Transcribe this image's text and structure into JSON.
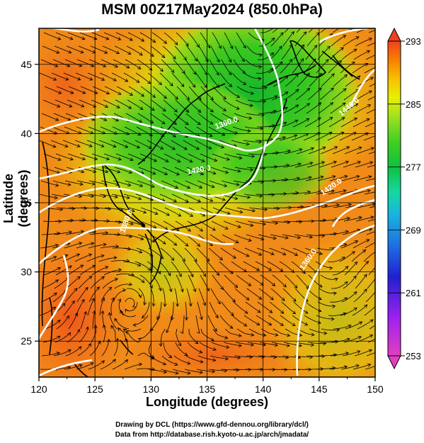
{
  "title": "MSM 00Z17May2024 (850.0hPa)",
  "x_axis": {
    "label": "Longitude (degrees)",
    "ticks": [
      {
        "value": 120,
        "label": "120"
      },
      {
        "value": 125,
        "label": "125"
      },
      {
        "value": 130,
        "label": "130"
      },
      {
        "value": 135,
        "label": "135"
      },
      {
        "value": 140,
        "label": "140"
      },
      {
        "value": 145,
        "label": "145"
      },
      {
        "value": 150,
        "label": "150"
      }
    ],
    "range": [
      120,
      150
    ]
  },
  "y_axis": {
    "label": "Latitude  (degrees)",
    "ticks": [
      {
        "value": 25,
        "label": "25"
      },
      {
        "value": 30,
        "label": "30"
      },
      {
        "value": 35,
        "label": "35"
      },
      {
        "value": 40,
        "label": "40"
      },
      {
        "value": 45,
        "label": "45"
      }
    ],
    "range": [
      22.4,
      47.6
    ]
  },
  "colorbar": {
    "range": [
      253,
      293
    ],
    "tick_labels": [
      {
        "value": 293,
        "label": "293"
      },
      {
        "value": 285,
        "label": "285"
      },
      {
        "value": 277,
        "label": "277"
      },
      {
        "value": 269,
        "label": "269"
      },
      {
        "value": 261,
        "label": "261"
      },
      {
        "value": 253,
        "label": "253"
      }
    ],
    "colors": [
      "#e040c0",
      "#a020f0",
      "#2020d0",
      "#1e6fe0",
      "#19b4e0",
      "#16d8a0",
      "#10c040",
      "#40d020",
      "#a0e020",
      "#e8f000",
      "#f8c000",
      "#f88000",
      "#f04020"
    ]
  },
  "contour_labels": [
    {
      "text": "1360.0",
      "lon": 136.8,
      "lat": 40.6,
      "angle": -20
    },
    {
      "text": "1420.0",
      "lon": 134.3,
      "lat": 37.2,
      "angle": -10
    },
    {
      "text": "1380.0",
      "lon": 128.0,
      "lat": 33.6,
      "angle": -70
    },
    {
      "text": "1440.0",
      "lon": 147.8,
      "lat": 41.8,
      "angle": -40
    },
    {
      "text": "1420.0",
      "lon": 146.2,
      "lat": 36.0,
      "angle": -35
    },
    {
      "text": "1360.0",
      "lon": 144.2,
      "lat": 30.8,
      "angle": -55
    }
  ],
  "credits": {
    "line1": "Drawing by DCL (https://www.gfd-dennou.org/library/dcl/)",
    "line2": "Data from http://database.rish.kyoto-u.ac.jp/arch/jmadata/"
  }
}
